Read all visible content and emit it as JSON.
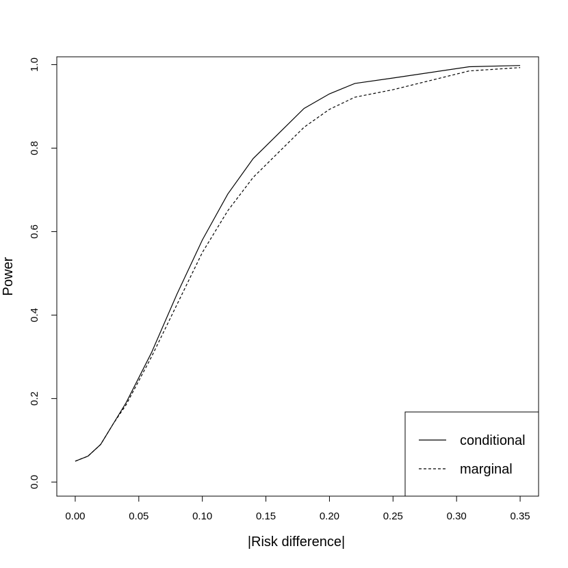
{
  "chart_data": {
    "type": "line",
    "title": "",
    "xlabel": "|Risk difference|",
    "ylabel": "Power",
    "xlim": [
      -0.0145,
      0.3645
    ],
    "ylim": [
      -0.0338,
      1.0188
    ],
    "x_ticks": [
      0.0,
      0.05,
      0.1,
      0.15,
      0.2,
      0.25,
      0.3,
      0.35
    ],
    "x_tick_labels": [
      "0.00",
      "0.05",
      "0.10",
      "0.15",
      "0.20",
      "0.25",
      "0.30",
      "0.35"
    ],
    "y_ticks": [
      0.0,
      0.2,
      0.4,
      0.6,
      0.8,
      1.0
    ],
    "y_tick_labels": [
      "0.0",
      "0.2",
      "0.4",
      "0.6",
      "0.8",
      "1.0"
    ],
    "grid": false,
    "legend_position": "bottom-right",
    "series": [
      {
        "name": "conditional",
        "line_style": "solid",
        "color": "#000000",
        "x": [
          0.0,
          0.01,
          0.02,
          0.03,
          0.04,
          0.06,
          0.08,
          0.1,
          0.12,
          0.14,
          0.16,
          0.18,
          0.2,
          0.22,
          0.25,
          0.31,
          0.35
        ],
        "y": [
          0.05,
          0.062,
          0.09,
          0.14,
          0.19,
          0.31,
          0.45,
          0.58,
          0.69,
          0.775,
          0.835,
          0.895,
          0.93,
          0.955,
          0.968,
          0.995,
          0.998
        ]
      },
      {
        "name": "marginal",
        "line_style": "dashed",
        "color": "#000000",
        "x": [
          0.0,
          0.01,
          0.02,
          0.03,
          0.04,
          0.06,
          0.08,
          0.1,
          0.12,
          0.14,
          0.16,
          0.18,
          0.2,
          0.22,
          0.25,
          0.31,
          0.35
        ],
        "y": [
          0.05,
          0.062,
          0.09,
          0.14,
          0.185,
          0.3,
          0.425,
          0.55,
          0.65,
          0.73,
          0.79,
          0.85,
          0.893,
          0.922,
          0.94,
          0.985,
          0.993
        ]
      }
    ]
  }
}
